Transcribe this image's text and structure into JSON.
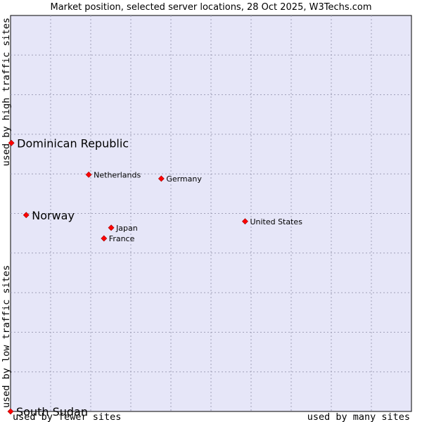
{
  "chart_data": {
    "type": "scatter",
    "title": "Market position, selected server locations, 28 Oct 2025, W3Techs.com",
    "xlabel_left": "used by fewer sites",
    "xlabel_right": "used by many sites",
    "ylabel_bottom": "used by low traffic sites",
    "ylabel_top": "used by high traffic sites",
    "xlim": [
      0,
      100
    ],
    "ylim": [
      0,
      100
    ],
    "grid": true,
    "point_color": "#ff0000",
    "plot_background": "#e6e6f8",
    "points": [
      {
        "name": "Dominican Republic",
        "x": 0.2,
        "y": 67.8,
        "emphasis": true
      },
      {
        "name": "Netherlands",
        "x": 19.5,
        "y": 59.8,
        "emphasis": false
      },
      {
        "name": "Germany",
        "x": 37.6,
        "y": 58.8,
        "emphasis": false
      },
      {
        "name": "Norway",
        "x": 3.9,
        "y": 49.6,
        "emphasis": true
      },
      {
        "name": "United States",
        "x": 58.5,
        "y": 48.0,
        "emphasis": false
      },
      {
        "name": "Japan",
        "x": 25.1,
        "y": 46.4,
        "emphasis": false
      },
      {
        "name": "France",
        "x": 23.3,
        "y": 43.7,
        "emphasis": false
      },
      {
        "name": "South Sudan",
        "x": 0.0,
        "y": 0.0,
        "emphasis": true
      }
    ]
  }
}
